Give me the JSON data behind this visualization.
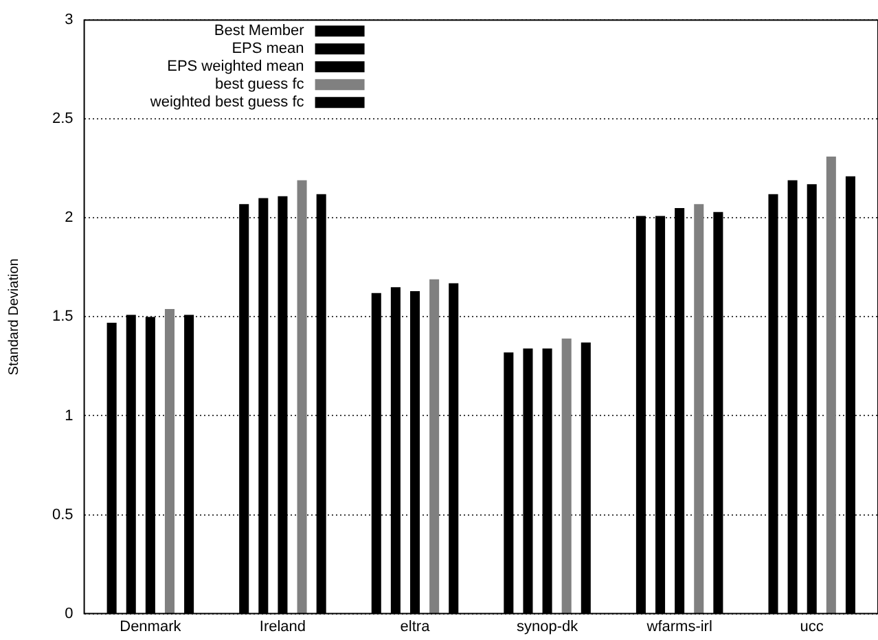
{
  "chart_data": {
    "type": "bar",
    "ylabel": "Standard Deviation",
    "categories": [
      "Denmark",
      "Ireland",
      "eltra",
      "synop-dk",
      "wfarms-irl",
      "ucc"
    ],
    "series": [
      {
        "name": "Best Member",
        "color": "#000000",
        "values": [
          1.47,
          2.07,
          1.62,
          1.32,
          2.01,
          2.12
        ]
      },
      {
        "name": "EPS mean",
        "color": "#000000",
        "values": [
          1.51,
          2.1,
          1.65,
          1.34,
          2.01,
          2.19
        ]
      },
      {
        "name": "EPS weighted mean",
        "color": "#000000",
        "values": [
          1.5,
          2.11,
          1.63,
          1.34,
          2.05,
          2.17
        ]
      },
      {
        "name": "best guess fc",
        "color": "#808080",
        "values": [
          1.54,
          2.19,
          1.69,
          1.39,
          2.07,
          2.31
        ]
      },
      {
        "name": "weighted best guess fc",
        "color": "#000000",
        "values": [
          1.51,
          2.12,
          1.67,
          1.37,
          2.03,
          2.21
        ]
      }
    ],
    "ylim": [
      0,
      3
    ],
    "yticks": [
      0,
      0.5,
      1,
      1.5,
      2,
      2.5,
      3
    ],
    "grid": "y",
    "legend": "top left"
  }
}
